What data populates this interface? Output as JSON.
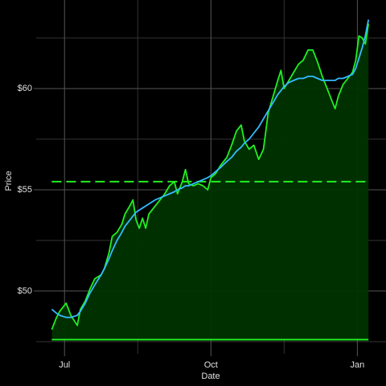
{
  "chart_data": {
    "type": "line",
    "x_label": "Date",
    "y_label": "Price",
    "x": [
      -8,
      -5,
      -3,
      1,
      4,
      8,
      10,
      13,
      16,
      19,
      23,
      25,
      28,
      30,
      33,
      36,
      38,
      41,
      43,
      45,
      47,
      49,
      51,
      53,
      57,
      60,
      63,
      66,
      69,
      71,
      74,
      76,
      78,
      81,
      84,
      87,
      90,
      92,
      95,
      98,
      102,
      105,
      108,
      111,
      113,
      116,
      119,
      122,
      125,
      128,
      131,
      134,
      136,
      138,
      141,
      144,
      147,
      150,
      153,
      156,
      159,
      162,
      165,
      168,
      170,
      172,
      175,
      178,
      181,
      183,
      185,
      187,
      189,
      191
    ],
    "series": [
      {
        "color": "#22ee22",
        "fill": "#003300",
        "values": [
          48.1,
          48.7,
          49.0,
          49.4,
          48.8,
          48.3,
          49.1,
          49.5,
          50.1,
          50.6,
          50.8,
          51.1,
          51.9,
          52.7,
          52.9,
          53.3,
          53.8,
          54.2,
          54.5,
          53.5,
          53.1,
          53.6,
          53.1,
          53.8,
          54.2,
          54.5,
          54.8,
          55.2,
          55.4,
          54.8,
          55.4,
          56.0,
          55.3,
          55.2,
          55.3,
          55.2,
          55.0,
          55.6,
          55.8,
          56.2,
          56.6,
          57.2,
          57.9,
          58.2,
          57.4,
          57.0,
          57.2,
          56.5,
          57.0,
          58.8,
          59.6,
          60.4,
          60.9,
          60.0,
          60.4,
          60.8,
          61.2,
          61.4,
          61.9,
          61.9,
          61.3,
          60.6,
          60.0,
          59.4,
          59.0,
          59.6,
          60.2,
          60.5,
          60.8,
          61.4,
          62.6,
          62.5,
          62.2,
          63.2
        ]
      },
      {
        "color": "#33bbff",
        "values": [
          49.1,
          48.9,
          48.8,
          48.7,
          48.7,
          48.8,
          49.0,
          49.4,
          49.9,
          50.3,
          50.8,
          51.1,
          51.6,
          52.0,
          52.5,
          52.9,
          53.2,
          53.5,
          53.7,
          53.9,
          54.0,
          54.1,
          54.2,
          54.3,
          54.5,
          54.6,
          54.7,
          54.8,
          54.9,
          55.0,
          55.1,
          55.2,
          55.2,
          55.3,
          55.4,
          55.5,
          55.6,
          55.7,
          55.9,
          56.1,
          56.4,
          56.6,
          56.9,
          57.1,
          57.3,
          57.5,
          57.8,
          58.1,
          58.5,
          58.9,
          59.3,
          59.7,
          59.9,
          60.1,
          60.3,
          60.4,
          60.5,
          60.5,
          60.6,
          60.6,
          60.5,
          60.4,
          60.4,
          60.4,
          60.4,
          60.5,
          60.5,
          60.6,
          60.7,
          61.0,
          61.5,
          62.0,
          62.6,
          63.4
        ]
      }
    ],
    "reference_lines": [
      {
        "value": 55.4,
        "color": "#22ee22",
        "style": "dashed"
      },
      {
        "value": 47.6,
        "color": "#22ee22",
        "style": "solid"
      }
    ],
    "xlim": [
      -17.8,
      202
    ],
    "xticks": [
      {
        "value": 0,
        "label": "Jul"
      },
      {
        "value": 92,
        "label": "Oct"
      },
      {
        "value": 184,
        "label": "Jan"
      }
    ],
    "xminor": [
      46,
      138
    ],
    "ylim": [
      46.9,
      64.37
    ],
    "yticks": [
      {
        "value": 50,
        "label": "$50"
      },
      {
        "value": 55,
        "label": "$55"
      },
      {
        "value": 60,
        "label": "$60"
      }
    ],
    "yminor": [
      47.5,
      52.5,
      57.5,
      62.5
    ],
    "grid": true
  }
}
